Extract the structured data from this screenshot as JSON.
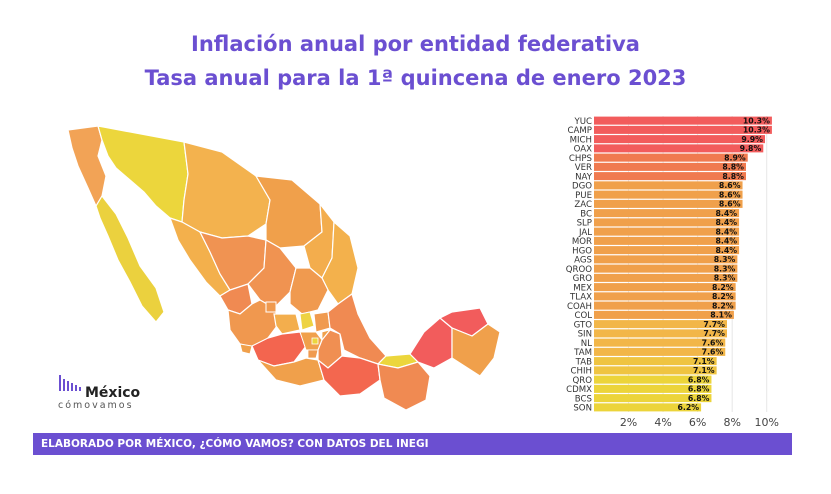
{
  "title": "Inflación anual por entidad federativa",
  "subtitle": "Tasa anual para la 1ª quincena de enero 2023",
  "footer": "ELABORADO POR MÉXICO, ¿CÓMO VAMOS? CON DATOS DEL INEGI",
  "logo": {
    "word": "México",
    "sub": "cómovamos"
  },
  "colors": {
    "accent": "#6b4fd1",
    "high": "#f25c5c",
    "mid": "#f0a04b",
    "low": "#ecd43a"
  },
  "chart_data": {
    "type": "bar",
    "orientation": "horizontal",
    "categories": [
      "YUC",
      "CAMP",
      "MICH",
      "OAX",
      "CHPS",
      "VER",
      "NAY",
      "DGO",
      "PUE",
      "ZAC",
      "BC",
      "SLP",
      "JAL",
      "MOR",
      "HGO",
      "AGS",
      "QROO",
      "GRO",
      "MEX",
      "TLAX",
      "COAH",
      "COL",
      "GTO",
      "SIN",
      "NL",
      "TAM",
      "TAB",
      "CHIH",
      "QRO",
      "CDMX",
      "BCS",
      "SON"
    ],
    "values": [
      10.3,
      10.3,
      9.9,
      9.8,
      8.9,
      8.8,
      8.8,
      8.6,
      8.6,
      8.6,
      8.4,
      8.4,
      8.4,
      8.4,
      8.4,
      8.3,
      8.3,
      8.3,
      8.2,
      8.2,
      8.2,
      8.1,
      7.7,
      7.7,
      7.6,
      7.6,
      7.1,
      7.1,
      6.8,
      6.8,
      6.8,
      6.2
    ],
    "labels": [
      "10.3%",
      "10.3%",
      "9.9%",
      "9.8%",
      "8.9%",
      "8.8%",
      "8.8%",
      "8.6%",
      "8.6%",
      "8.6%",
      "8.4%",
      "8.4%",
      "8.4%",
      "8.4%",
      "8.4%",
      "8.3%",
      "8.3%",
      "8.3%",
      "8.2%",
      "8.2%",
      "8.2%",
      "8.1%",
      "7.7%",
      "7.7%",
      "7.6%",
      "7.6%",
      "7.1%",
      "7.1%",
      "6.8%",
      "6.8%",
      "6.8%",
      "6.2%"
    ],
    "xticks": [
      "2%",
      "4%",
      "6%",
      "8%",
      "10%"
    ],
    "xtick_values": [
      2,
      4,
      6,
      8,
      10
    ],
    "xlim": [
      0,
      11
    ],
    "grid": true
  }
}
